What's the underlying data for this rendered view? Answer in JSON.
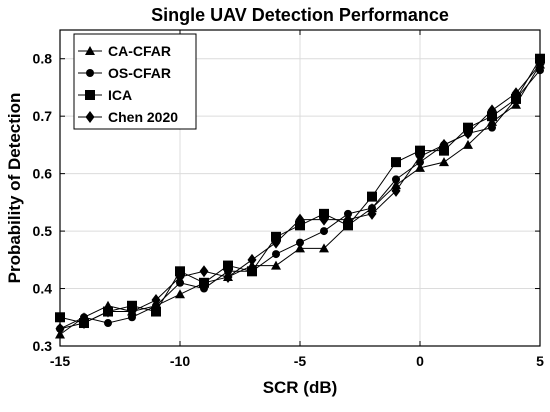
{
  "chart_data": {
    "type": "line",
    "title": "Single UAV Detection Performance",
    "xlabel": "SCR (dB)",
    "ylabel": "Probability of Detection",
    "xlim": [
      -15,
      5
    ],
    "ylim": [
      0.3,
      0.85
    ],
    "x_ticks": [
      -15,
      -10,
      -5,
      0,
      5
    ],
    "y_ticks": [
      0.3,
      0.4,
      0.5,
      0.6,
      0.7,
      0.8
    ],
    "grid": true,
    "legend_position": "top-left",
    "x": [
      -15,
      -14,
      -13,
      -12,
      -11,
      -10,
      -9,
      -8,
      -7,
      -6,
      -5,
      -4,
      -3,
      -2,
      -1,
      0,
      1,
      2,
      3,
      4,
      5
    ],
    "series": [
      {
        "name": "CA-CFAR",
        "marker": "triangle",
        "color": "#000000",
        "values": [
          0.32,
          0.35,
          0.37,
          0.36,
          0.37,
          0.39,
          0.41,
          0.42,
          0.44,
          0.44,
          0.47,
          0.47,
          0.51,
          0.54,
          0.58,
          0.61,
          0.62,
          0.65,
          0.69,
          0.72,
          0.79
        ]
      },
      {
        "name": "OS-CFAR",
        "marker": "circle",
        "color": "#000000",
        "values": [
          0.33,
          0.35,
          0.34,
          0.35,
          0.37,
          0.41,
          0.4,
          0.43,
          0.43,
          0.46,
          0.48,
          0.5,
          0.53,
          0.54,
          0.59,
          0.62,
          0.65,
          0.67,
          0.68,
          0.73,
          0.78
        ]
      },
      {
        "name": "ICA",
        "marker": "square",
        "color": "#000000",
        "values": [
          0.35,
          0.34,
          0.36,
          0.37,
          0.36,
          0.43,
          0.41,
          0.44,
          0.43,
          0.49,
          0.51,
          0.53,
          0.51,
          0.56,
          0.62,
          0.64,
          0.64,
          0.68,
          0.7,
          0.73,
          0.8
        ]
      },
      {
        "name": "Chen 2020",
        "marker": "diamond",
        "color": "#000000",
        "values": [
          0.33,
          0.34,
          0.36,
          0.36,
          0.38,
          0.42,
          0.43,
          0.42,
          0.45,
          0.48,
          0.52,
          0.52,
          0.52,
          0.53,
          0.57,
          0.63,
          0.65,
          0.67,
          0.71,
          0.74,
          0.79
        ]
      }
    ]
  }
}
